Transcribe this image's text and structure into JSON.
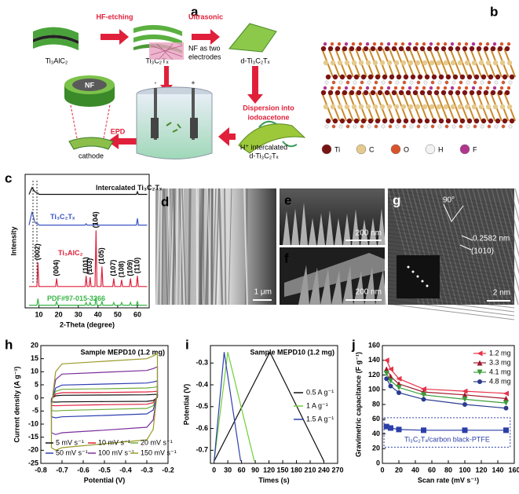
{
  "panel_a": {
    "letter": "a",
    "materials": [
      "Ti₃AlC₂",
      "Ti₃C₂Tₓ",
      "d-Ti₃C₂Tₓ"
    ],
    "steps": [
      "HF-etching",
      "Ultrasonic"
    ],
    "electrodes": [
      "NF as two",
      "electrodes"
    ],
    "dispersion": [
      "Dispersion into",
      "iodoacetone"
    ],
    "intercalated": [
      "H⁺ intercalated",
      "d-Ti₃C₂Tₓ"
    ],
    "epd": "EPD",
    "nf": "NF",
    "cathode": "cathode",
    "minus": "-",
    "plus": "+"
  },
  "panel_b": {
    "letter": "b",
    "elements": [
      {
        "symbol": "Ti",
        "color": "#7a1414"
      },
      {
        "symbol": "C",
        "color": "#e6c98c"
      },
      {
        "symbol": "O",
        "color": "#d9542a"
      },
      {
        "symbol": "H",
        "color": "#f2f2f2"
      },
      {
        "symbol": "F",
        "color": "#b0358f"
      }
    ]
  },
  "panel_d": {
    "letter": "d",
    "scale": "1 μm"
  },
  "panel_e": {
    "letter": "e",
    "scale": "200 nm"
  },
  "panel_f": {
    "letter": "f",
    "scale": "200 nm"
  },
  "panel_g": {
    "letter": "g",
    "angle": "90°",
    "spacing": "0.2582 nm",
    "plane": "(1010)",
    "scale": "2 nm"
  },
  "chart_data": [
    {
      "type": "line",
      "panel": "c",
      "x_label": "2-Theta (degree)",
      "y_label": "Intensity",
      "legend": "inline",
      "x": [
        5,
        6.5,
        8,
        9,
        9.5,
        10,
        18.5,
        19,
        19.5,
        33.5,
        34,
        34.5,
        35.5,
        36,
        36.5,
        38.5,
        39,
        39.5,
        41.5,
        42,
        42.5,
        47.5,
        48,
        48.5,
        51.5,
        52,
        52.5,
        56,
        56.5,
        57,
        59.5,
        60,
        60.5,
        65
      ],
      "xlim": [
        3,
        66
      ],
      "ylim": [
        0,
        100
      ],
      "xticks": [
        10,
        20,
        30,
        40,
        50,
        60
      ],
      "series": [
        {
          "name": "Intercalated Ti₃C₂Tₓ",
          "color": "#111111",
          "values": [
            85,
            90,
            87,
            86,
            86,
            85,
            85,
            85,
            85,
            85,
            85,
            85,
            85,
            85,
            85,
            85,
            85,
            85,
            85,
            85,
            85,
            85,
            85,
            85,
            85,
            85,
            85,
            85,
            85,
            85,
            85,
            87,
            85,
            85
          ]
        },
        {
          "name": "Ti₃C₂Tₓ",
          "color": "#3b55c4",
          "values": [
            62,
            72,
            64,
            63,
            63,
            62,
            62,
            62,
            62,
            62,
            63,
            62,
            62,
            62,
            62,
            62,
            63,
            62,
            62,
            62,
            62,
            62,
            62,
            62,
            62,
            62,
            62,
            62,
            62,
            62,
            62,
            67,
            62,
            62
          ]
        },
        {
          "name": "Ti₃AlC₂",
          "color": "#e0203a",
          "values": [
            16,
            16,
            16,
            16,
            34,
            16,
            16,
            22,
            16,
            16,
            24,
            16,
            16,
            23,
            16,
            16,
            58,
            16,
            16,
            31,
            16,
            16,
            22,
            16,
            16,
            21,
            16,
            16,
            22,
            16,
            16,
            24,
            16,
            16
          ]
        },
        {
          "name": "PDF#97-015-3266",
          "color": "#3bb54a",
          "values": [
            2,
            2,
            2,
            2,
            7,
            2,
            2,
            5,
            2,
            2,
            4,
            2,
            2,
            4,
            2,
            2,
            8,
            2,
            2,
            5,
            2,
            2,
            4,
            2,
            2,
            4,
            2,
            2,
            4,
            2,
            2,
            5,
            2,
            2
          ]
        }
      ],
      "peaks": [
        {
          "label": "(002)",
          "x": 9.5
        },
        {
          "label": "(004)",
          "x": 19
        },
        {
          "label": "(101)",
          "x": 34
        },
        {
          "label": "(103)",
          "x": 36
        },
        {
          "label": "(104)",
          "x": 39
        },
        {
          "label": "(105)",
          "x": 42
        },
        {
          "label": "(107)",
          "x": 48
        },
        {
          "label": "(108)",
          "x": 52
        },
        {
          "label": "(109)",
          "x": 56.5
        },
        {
          "label": "(110)",
          "x": 60
        }
      ]
    },
    {
      "type": "line",
      "panel": "h",
      "x_label": "Potential (V)",
      "y_label": "Current density (A g⁻¹)",
      "annotation": "Sample MEPD10 (1.2 mg)",
      "legend": "bottom",
      "x": [
        -0.75,
        -0.73,
        -0.7,
        -0.5,
        -0.3,
        -0.27,
        -0.25,
        -0.25,
        -0.27,
        -0.3,
        -0.5,
        -0.7,
        -0.73,
        -0.75,
        -0.75
      ],
      "xlim": [
        -0.8,
        -0.2
      ],
      "ylim": [
        -25,
        20
      ],
      "xticks": [
        -0.8,
        -0.7,
        -0.6,
        -0.5,
        -0.4,
        -0.3,
        -0.2
      ],
      "yticks": [
        -25,
        -20,
        -15,
        -10,
        -5,
        0,
        5,
        10,
        15,
        20
      ],
      "series": [
        {
          "name": "5 mV s⁻¹",
          "color": "#111111",
          "values": [
            -0.2,
            0.8,
            1,
            1.1,
            1.2,
            1.3,
            1.4,
            0.2,
            -1,
            -1.3,
            -1.4,
            -1.5,
            -1.6,
            -1.5,
            -0.2
          ]
        },
        {
          "name": "10 mV s⁻¹",
          "color": "#e0203a",
          "values": [
            -0.5,
            1.5,
            2,
            2.1,
            2.3,
            2.4,
            2.6,
            0.5,
            -1.8,
            -2.4,
            -2.6,
            -2.9,
            -3,
            -2.9,
            -0.5
          ]
        },
        {
          "name": "20 mV s⁻¹",
          "color": "#6fae3a",
          "values": [
            -0.8,
            2.5,
            3.3,
            3.5,
            3.8,
            4,
            4.3,
            0.8,
            -3,
            -4,
            -4.4,
            -4.8,
            -5,
            -4.8,
            -0.8
          ]
        },
        {
          "name": "50 mV s⁻¹",
          "color": "#2d3fb0",
          "values": [
            -1.1,
            3.8,
            4.9,
            5.3,
            5.7,
            6.1,
            6.5,
            1.1,
            -4.6,
            -6.1,
            -6.7,
            -7.2,
            -7.6,
            -7.2,
            -1.1
          ]
        },
        {
          "name": "100 mV s⁻¹",
          "color": "#7a2f9a",
          "values": [
            -2.1,
            7,
            9.1,
            9.8,
            10.5,
            11.2,
            11.9,
            2.1,
            -8.4,
            -11.2,
            -12.3,
            -13.3,
            -14,
            -13.3,
            -2.1
          ]
        },
        {
          "name": "150 mV s⁻¹",
          "color": "#9a9a2a",
          "values": [
            -3,
            10,
            13,
            14,
            15,
            16,
            17,
            3,
            -12,
            -16,
            -17.5,
            -19,
            -20,
            -19,
            -3
          ]
        }
      ]
    },
    {
      "type": "line",
      "panel": "i",
      "x_label": "Times (s)",
      "y_label": "Potential (V)",
      "annotation": "Sample MEPD10 (1.2 mg)",
      "legend": "right",
      "xlim": [
        -8,
        270
      ],
      "ylim": [
        -0.76,
        -0.22
      ],
      "xticks": [
        0,
        30,
        60,
        90,
        120,
        150,
        180,
        210,
        240,
        270
      ],
      "yticks": [
        -0.7,
        -0.6,
        -0.5,
        -0.4,
        -0.3
      ],
      "series": [
        {
          "name": "0.5 A g⁻¹",
          "color": "#111111",
          "x": [
            0,
            122,
            240
          ],
          "values": [
            -0.75,
            -0.25,
            -0.75
          ]
        },
        {
          "name": "1 A g⁻¹",
          "color": "#6fcf3a",
          "x": [
            0,
            30,
            88
          ],
          "values": [
            -0.75,
            -0.25,
            -0.75
          ]
        },
        {
          "name": "1.5 A g⁻¹",
          "color": "#2d3fb0",
          "x": [
            0,
            22,
            58
          ],
          "values": [
            -0.75,
            -0.25,
            -0.75
          ]
        }
      ]
    },
    {
      "type": "line",
      "panel": "j",
      "x_label": "Scan rate (mV s⁻¹)",
      "y_label": "Gravimetric capacitance (F g⁻¹)",
      "legend": "top-right",
      "x": [
        5,
        10,
        20,
        50,
        100,
        150
      ],
      "xlim": [
        0,
        160
      ],
      "ylim": [
        0,
        160
      ],
      "xticks": [
        0,
        20,
        40,
        60,
        80,
        100,
        120,
        140,
        160
      ],
      "yticks": [
        0,
        20,
        40,
        60,
        80,
        100,
        120,
        140,
        160
      ],
      "series": [
        {
          "name": "1.2 mg",
          "color": "#e8334a",
          "marker": "triangle-left",
          "values": [
            140,
            128,
            115,
            101,
            98,
            95
          ]
        },
        {
          "name": "3.3 mg",
          "color": "#a0182b",
          "marker": "triangle",
          "values": [
            128,
            118,
            108,
            97,
            93,
            88
          ]
        },
        {
          "name": "4.1 mg",
          "color": "#3a9d3a",
          "marker": "triangle-down",
          "values": [
            122,
            112,
            103,
            93,
            87,
            82
          ]
        },
        {
          "name": "4.8 mg",
          "color": "#2a3b8f",
          "marker": "circle",
          "values": [
            115,
            105,
            96,
            87,
            80,
            75
          ]
        },
        {
          "name": "Ti₃C₂Tₓ/carbon black-PTFE",
          "color": "#2b3fa8",
          "marker": "square",
          "boxed": true,
          "values": [
            50,
            48,
            46,
            45,
            45,
            45
          ]
        }
      ]
    }
  ]
}
